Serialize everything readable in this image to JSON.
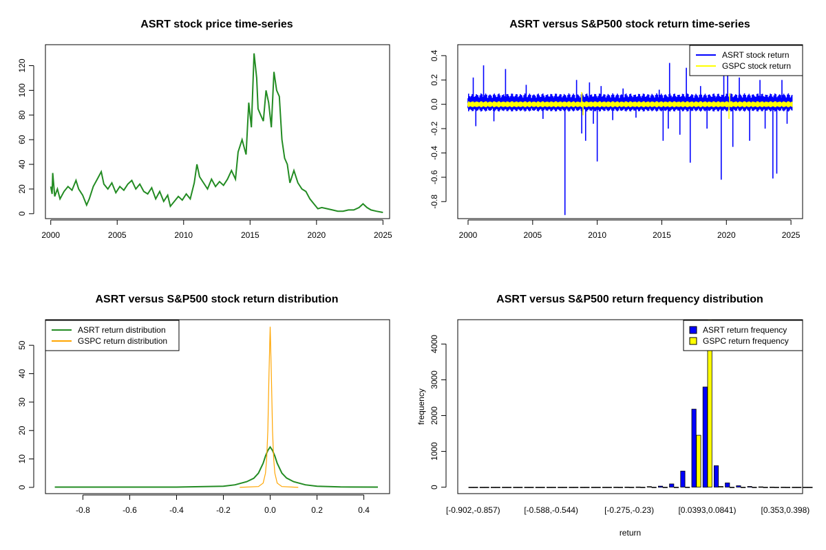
{
  "chart_data": [
    {
      "id": "price",
      "type": "line",
      "title": "ASRT stock price time-series",
      "xlabel": "",
      "ylabel": "",
      "xlim": [
        1999.6,
        2025.5
      ],
      "ylim": [
        -4,
        137
      ],
      "xticks": [
        2000,
        2005,
        2010,
        2015,
        2020,
        2025
      ],
      "xtick_labels": [
        "2000",
        "2005",
        "2010",
        "2015",
        "2020",
        "2025"
      ],
      "yticks": [
        0,
        20,
        40,
        60,
        80,
        100,
        120
      ],
      "ytick_labels": [
        "0",
        "20",
        "40",
        "60",
        "80",
        "100",
        "120"
      ],
      "grid": false,
      "colors": {
        "line": "#228b22"
      },
      "series": [
        {
          "color": "#228b22",
          "x": [
            2000.0,
            2000.1,
            2000.15,
            2000.3,
            2000.5,
            2000.7,
            2001.0,
            2001.3,
            2001.6,
            2001.9,
            2002.1,
            2002.4,
            2002.7,
            2002.9,
            2003.2,
            2003.5,
            2003.8,
            2004.0,
            2004.3,
            2004.6,
            2004.9,
            2005.2,
            2005.5,
            2005.8,
            2006.1,
            2006.4,
            2006.7,
            2007.0,
            2007.3,
            2007.6,
            2007.9,
            2008.2,
            2008.5,
            2008.8,
            2009.0,
            2009.3,
            2009.6,
            2009.9,
            2010.2,
            2010.5,
            2010.8,
            2011.0,
            2011.2,
            2011.5,
            2011.8,
            2012.1,
            2012.4,
            2012.7,
            2013.0,
            2013.3,
            2013.6,
            2013.9,
            2014.1,
            2014.4,
            2014.7,
            2014.9,
            2015.1,
            2015.3,
            2015.5,
            2015.6,
            2015.8,
            2016.0,
            2016.2,
            2016.4,
            2016.6,
            2016.8,
            2017.0,
            2017.2,
            2017.4,
            2017.6,
            2017.8,
            2018.0,
            2018.3,
            2018.6,
            2018.9,
            2019.2,
            2019.5,
            2019.8,
            2020.1,
            2020.4,
            2020.8,
            2021.2,
            2021.6,
            2022.0,
            2022.4,
            2022.8,
            2023.2,
            2023.5,
            2023.8,
            2024.1,
            2024.5,
            2025.0
          ],
          "y": [
            22,
            16,
            33,
            14,
            20,
            12,
            18,
            22,
            19,
            27,
            20,
            15,
            7,
            12,
            22,
            28,
            34,
            24,
            20,
            25,
            17,
            22,
            19,
            24,
            27,
            20,
            24,
            18,
            16,
            21,
            12,
            18,
            10,
            15,
            6,
            10,
            14,
            11,
            16,
            12,
            25,
            40,
            30,
            25,
            20,
            28,
            22,
            26,
            23,
            28,
            35,
            28,
            50,
            60,
            48,
            90,
            70,
            130,
            110,
            85,
            80,
            75,
            100,
            90,
            70,
            115,
            100,
            95,
            60,
            45,
            40,
            25,
            35,
            25,
            20,
            18,
            12,
            8,
            4,
            5,
            4,
            3,
            2,
            2,
            3,
            3,
            5,
            8,
            5,
            3,
            2,
            1
          ]
        }
      ]
    },
    {
      "id": "returns",
      "type": "line",
      "title": "ASRT versus S&P500 stock return time-series",
      "xlabel": "",
      "ylabel": "",
      "xlim": [
        1999.2,
        2025.9
      ],
      "ylim": [
        -0.94,
        0.49
      ],
      "xticks": [
        2000,
        2005,
        2010,
        2015,
        2020,
        2025
      ],
      "xtick_labels": [
        "2000",
        "2005",
        "2010",
        "2015",
        "2020",
        "2025"
      ],
      "yticks": [
        -0.8,
        -0.6,
        -0.4,
        -0.2,
        0.0,
        0.2,
        0.4
      ],
      "ytick_labels": [
        "-0.8",
        "-0.6",
        "-0.4",
        "-0.2",
        "0.0",
        "0.2",
        "0.4"
      ],
      "grid": false,
      "legend": {
        "position": "top-right"
      },
      "series": [
        {
          "name": "ASRT stock return",
          "color": "#0000ff",
          "band": [
            0.09,
            -0.06
          ],
          "spikes": [
            [
              2000.4,
              0.22
            ],
            [
              2000.6,
              -0.18
            ],
            [
              2001.2,
              0.32
            ],
            [
              2002.0,
              -0.14
            ],
            [
              2002.9,
              0.29
            ],
            [
              2004.5,
              0.16
            ],
            [
              2005.8,
              -0.12
            ],
            [
              2007.5,
              -0.91
            ],
            [
              2008.4,
              0.2
            ],
            [
              2008.8,
              -0.24
            ],
            [
              2009.1,
              -0.3
            ],
            [
              2009.4,
              0.18
            ],
            [
              2009.7,
              -0.16
            ],
            [
              2010.0,
              -0.47
            ],
            [
              2010.3,
              0.15
            ],
            [
              2011.2,
              -0.13
            ],
            [
              2012.0,
              0.13
            ],
            [
              2013.0,
              -0.11
            ],
            [
              2014.8,
              0.12
            ],
            [
              2015.1,
              -0.3
            ],
            [
              2015.5,
              -0.2
            ],
            [
              2015.6,
              0.34
            ],
            [
              2016.4,
              -0.25
            ],
            [
              2016.9,
              0.3
            ],
            [
              2017.2,
              -0.48
            ],
            [
              2018.0,
              0.15
            ],
            [
              2018.5,
              -0.2
            ],
            [
              2019.6,
              -0.62
            ],
            [
              2019.8,
              0.25
            ],
            [
              2020.1,
              0.3
            ],
            [
              2020.5,
              -0.35
            ],
            [
              2021.0,
              0.22
            ],
            [
              2021.8,
              -0.3
            ],
            [
              2022.6,
              0.2
            ],
            [
              2023.0,
              -0.2
            ],
            [
              2023.6,
              -0.61
            ],
            [
              2023.9,
              -0.57
            ],
            [
              2024.3,
              0.2
            ],
            [
              2024.7,
              -0.16
            ]
          ]
        },
        {
          "name": "GSPC stock return",
          "color": "#ffff00",
          "band": [
            0.025,
            -0.025
          ],
          "spikes": [
            [
              2008.8,
              0.1
            ],
            [
              2008.9,
              -0.09
            ],
            [
              2020.2,
              -0.12
            ],
            [
              2020.25,
              0.09
            ]
          ]
        }
      ]
    },
    {
      "id": "density",
      "type": "line",
      "title": "ASRT versus S&P500 stock return distribution",
      "xlabel": "",
      "ylabel": "",
      "xlim": [
        -0.96,
        0.51
      ],
      "ylim": [
        -2.2,
        59
      ],
      "xticks": [
        -0.8,
        -0.6,
        -0.4,
        -0.2,
        0.0,
        0.2,
        0.4
      ],
      "xtick_labels": [
        "-0.8",
        "-0.6",
        "-0.4",
        "-0.2",
        "0.0",
        "0.2",
        "0.4"
      ],
      "yticks": [
        0,
        10,
        20,
        30,
        40,
        50
      ],
      "ytick_labels": [
        "0",
        "10",
        "20",
        "30",
        "40",
        "50"
      ],
      "grid": false,
      "legend": {
        "position": "top-left"
      },
      "series": [
        {
          "name": "ASRT return distribution",
          "color": "#228b22",
          "x": [
            -0.92,
            -0.4,
            -0.2,
            -0.15,
            -0.1,
            -0.07,
            -0.05,
            -0.03,
            -0.02,
            -0.01,
            0.0,
            0.01,
            0.02,
            0.03,
            0.05,
            0.07,
            0.1,
            0.15,
            0.2,
            0.3,
            0.46
          ],
          "y": [
            0.1,
            0.1,
            0.4,
            0.9,
            2.0,
            3.2,
            5.0,
            8.5,
            11.0,
            13.0,
            14.2,
            13.0,
            11.0,
            8.5,
            5.0,
            3.3,
            2.0,
            0.9,
            0.4,
            0.15,
            0.1
          ]
        },
        {
          "name": "GSPC return distribution",
          "color": "#ffa500",
          "x": [
            -0.13,
            -0.05,
            -0.03,
            -0.02,
            -0.015,
            -0.01,
            -0.005,
            0.0,
            0.005,
            0.01,
            0.015,
            0.02,
            0.03,
            0.05,
            0.12
          ],
          "y": [
            0,
            0.3,
            1.5,
            5.0,
            10.0,
            20.0,
            40.0,
            56.5,
            40.0,
            20.0,
            10.0,
            5.0,
            1.5,
            0.3,
            0
          ]
        }
      ]
    },
    {
      "id": "freq",
      "type": "bar",
      "title": "ASRT versus S&P500 return frequency distribution",
      "xlabel": "return",
      "ylabel": "frequency",
      "ylim": [
        -180,
        4680
      ],
      "yticks": [
        0,
        1000,
        2000,
        3000,
        4000
      ],
      "ytick_labels": [
        "0",
        "1000",
        "2000",
        "3000",
        "4000"
      ],
      "xtick_labels": [
        "[-0.902,-0.857)",
        "[-0.588,-0.544)",
        "[-0.275,-0.23)",
        "[0.0393,0.0841)",
        "[0.353,0.398)"
      ],
      "xtick_bin_index": [
        0,
        7,
        14,
        21,
        28
      ],
      "grid": false,
      "legend": {
        "position": "top-right"
      },
      "series": [
        {
          "name": "ASRT return frequency",
          "color": "#0000ff",
          "values": [
            1,
            0,
            0,
            0,
            0,
            0,
            0,
            0,
            0,
            0,
            0,
            1,
            1,
            2,
            4,
            6,
            15,
            30,
            90,
            450,
            2180,
            2800,
            600,
            120,
            40,
            20,
            10,
            4,
            2,
            1,
            1
          ]
        },
        {
          "name": "GSPC return frequency",
          "color": "#ffff00",
          "values": [
            0,
            0,
            0,
            0,
            0,
            0,
            0,
            0,
            0,
            0,
            0,
            0,
            0,
            0,
            0,
            0,
            0,
            0,
            0,
            2,
            1450,
            4800,
            20,
            0,
            0,
            0,
            0,
            0,
            0,
            0,
            0
          ]
        }
      ]
    }
  ]
}
